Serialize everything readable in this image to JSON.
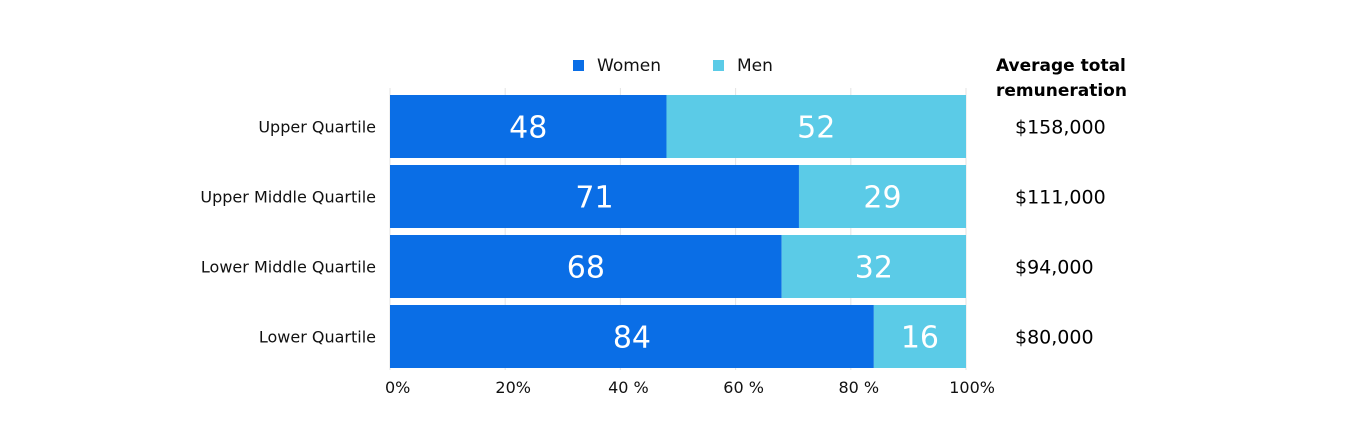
{
  "chart_data": {
    "type": "bar",
    "orientation": "horizontal",
    "stacked": true,
    "percent": true,
    "categories": [
      "Upper Quartile",
      "Upper Middle Quartile",
      "Lower Middle Quartile",
      "Lower Quartile"
    ],
    "series": [
      {
        "name": "Women",
        "color": "#0A6EE6",
        "values": [
          48,
          71,
          68,
          84
        ]
      },
      {
        "name": "Men",
        "color": "#5BCBE7",
        "values": [
          52,
          29,
          32,
          16
        ]
      }
    ],
    "x_ticks": [
      "0%",
      "20%",
      "40 %",
      "60 %",
      "80 %",
      "100%"
    ],
    "xlim": [
      0,
      100
    ],
    "grid": true,
    "legend_position": "top",
    "title": "",
    "xlabel": "",
    "ylabel": ""
  },
  "side_table": {
    "header_line1": "Average total",
    "header_line2": "remuneration",
    "values": [
      "$158,000",
      "$111,000",
      "$94,000",
      "$80,000"
    ]
  }
}
